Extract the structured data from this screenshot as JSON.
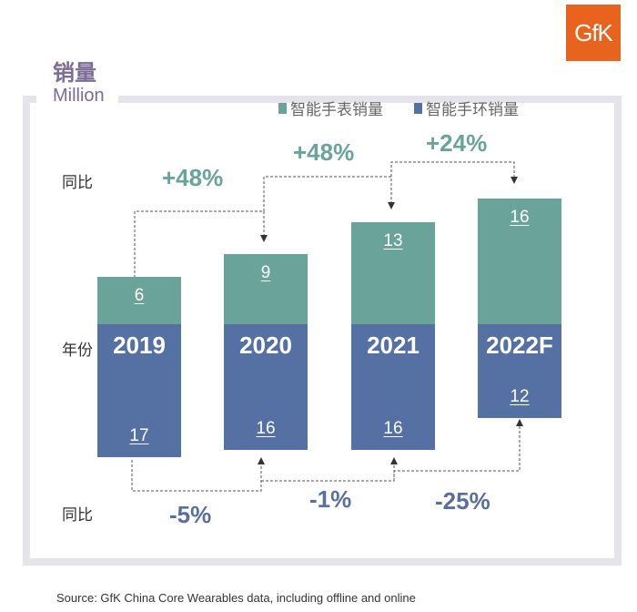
{
  "logo": "GfK",
  "chart_data": {
    "type": "bar",
    "stacked": true,
    "title": "销量",
    "unit": "Million",
    "categories": [
      "2019",
      "2020",
      "2021",
      "2022F"
    ],
    "series": [
      {
        "name": "智能手表销量",
        "values": [
          6,
          9,
          13,
          16
        ],
        "color": "#6aa39a"
      },
      {
        "name": "智能手环销量",
        "values": [
          17,
          16,
          16,
          12
        ],
        "color": "#5570a3"
      }
    ],
    "row_labels": {
      "yoy": "同比",
      "year": "年份"
    },
    "yoy_watch": [
      "+48%",
      "+48%",
      "+24%"
    ],
    "yoy_band": [
      "-5%",
      "-1%",
      "-25%"
    ],
    "growth_colors": {
      "watch": "#6aa39a",
      "band": "#5a6f9c"
    }
  },
  "source": "Source: GfK China Core Wearables data, including offline and online"
}
